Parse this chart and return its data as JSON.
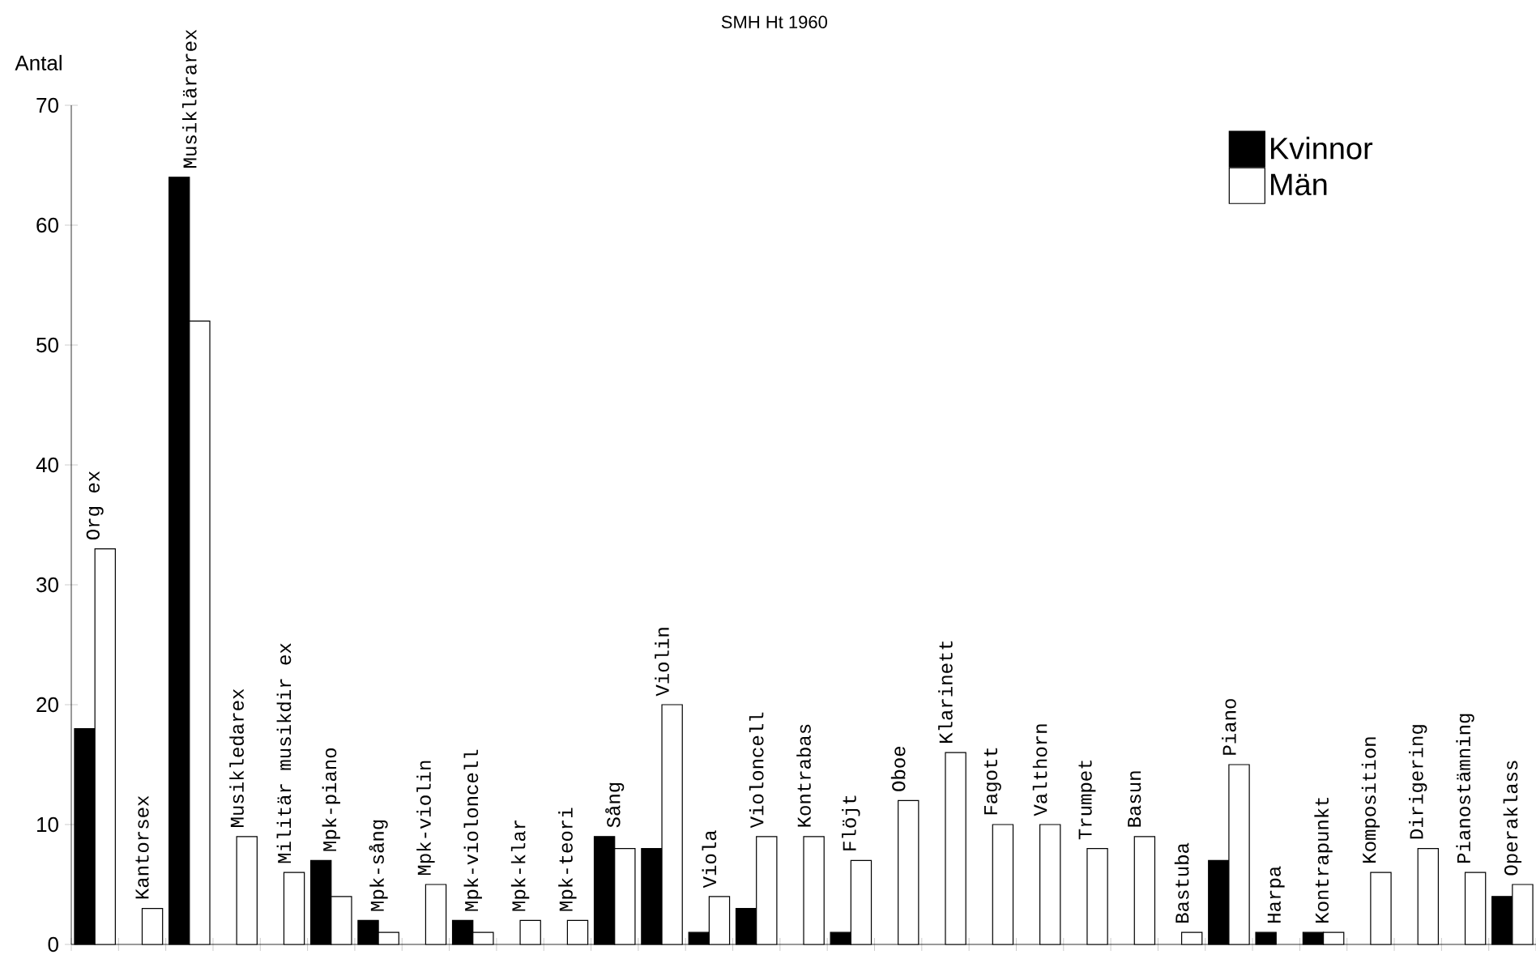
{
  "chart_data": {
    "type": "bar",
    "title": "SMH Ht 1960",
    "ylabel": "Antal",
    "categories": [
      "Org ex",
      "Kantorsex",
      "Musiklärarex",
      "Musikledarex",
      "Militär musikdir ex",
      "Mpk-piano",
      "Mpk-sång",
      "Mpk-violin",
      "Mpk-violoncell",
      "Mpk-klar",
      "Mpk-teori",
      "Sång",
      "Violin",
      "Viola",
      "Violoncell",
      "Kontrabas",
      "Flöjt",
      "Oboe",
      "Klarinett",
      "Fagott",
      "Valthorn",
      "Trumpet",
      "Basun",
      "Bastuba",
      "Piano",
      "Harpa",
      "Kontrapunkt",
      "Komposition",
      "Dirigering",
      "Pianostämning",
      "Operaklass"
    ],
    "series": [
      {
        "name": "Kvinnor",
        "color": "#000000",
        "values": [
          18,
          null,
          64,
          null,
          null,
          7,
          2,
          null,
          2,
          null,
          null,
          9,
          8,
          1,
          3,
          null,
          1,
          null,
          null,
          null,
          null,
          null,
          null,
          null,
          7,
          1,
          1,
          null,
          null,
          null,
          4
        ]
      },
      {
        "name": "Män",
        "color": "#ffffff",
        "values": [
          33,
          3,
          52,
          9,
          6,
          4,
          1,
          5,
          1,
          2,
          2,
          8,
          20,
          4,
          9,
          9,
          7,
          12,
          16,
          10,
          10,
          8,
          9,
          1,
          15,
          null,
          1,
          6,
          8,
          6,
          5
        ]
      }
    ],
    "ylim": [
      0,
      70
    ],
    "yticks": [
      0,
      10,
      20,
      30,
      40,
      50,
      60,
      70
    ],
    "legend": "top right"
  }
}
